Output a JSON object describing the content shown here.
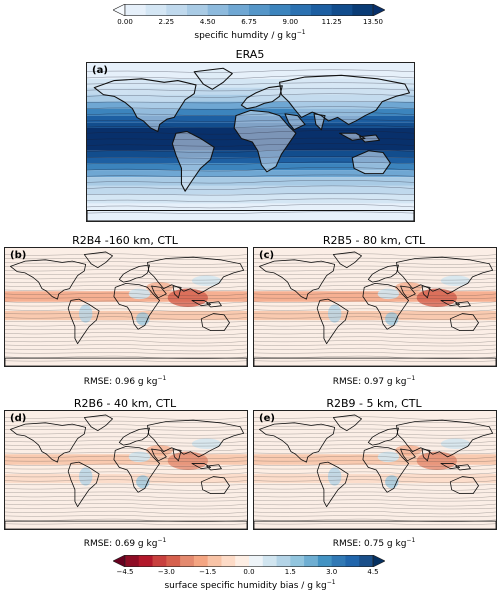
{
  "top_colorbar": {
    "ticks": [
      "0.00",
      "2.25",
      "4.50",
      "6.75",
      "9.00",
      "11.25",
      "13.50"
    ],
    "label_main": "specific humdity / g kg",
    "label_sup": "−1",
    "colors": [
      "#f7fbff",
      "#e6f0fa",
      "#d4e6f4",
      "#c0d9ed",
      "#a9cbe5",
      "#8dbadd",
      "#6fa7d3",
      "#5596c8",
      "#3c84bd",
      "#2b71b1",
      "#1d5fa2",
      "#124d8d",
      "#0a3c76",
      "#08306b"
    ]
  },
  "panels": [
    {
      "id": "a",
      "label": "(a)",
      "title": "ERA5",
      "rmse_value": "",
      "kind": "era5"
    },
    {
      "id": "b",
      "label": "(b)",
      "title": "R2B4 -160 km, CTL",
      "rmse_value": "0.96",
      "kind": "bias"
    },
    {
      "id": "c",
      "label": "(c)",
      "title": "R2B5 - 80 km, CTL",
      "rmse_value": "0.97",
      "kind": "bias"
    },
    {
      "id": "d",
      "label": "(d)",
      "title": "R2B6 - 40 km, CTL",
      "rmse_value": "0.69",
      "kind": "bias"
    },
    {
      "id": "e",
      "label": "(e)",
      "title": "R2B9 - 5 km, CTL",
      "rmse_value": "0.75",
      "kind": "bias"
    }
  ],
  "rmse_text": {
    "prefix": "RMSE: ",
    "unit": " g kg",
    "sup": "−1"
  },
  "bottom_colorbar": {
    "ticks": [
      "−4.5",
      "−3.0",
      "−1.5",
      "0.0",
      "1.5",
      "3.0",
      "4.5"
    ],
    "label": "surface specific humidity bias / g kg",
    "label_sup": "−1",
    "colors": [
      "#67001f",
      "#8e0d25",
      "#b2182b",
      "#c8403e",
      "#d6604d",
      "#e48a6f",
      "#f4a582",
      "#f8c3a6",
      "#fddbc7",
      "#fdeee4",
      "#eef4f8",
      "#d1e5f0",
      "#b4d4e7",
      "#92c5de",
      "#6eaed2",
      "#4393c3",
      "#3179b5",
      "#2166ac",
      "#1a4f8a",
      "#053061"
    ]
  },
  "chart_data": {
    "type": "heatmap",
    "panels": [
      {
        "label": "(a)",
        "title": "ERA5",
        "variable": "specific humidity",
        "units": "g kg-1",
        "colorbar_range": [
          0.0,
          13.5
        ]
      },
      {
        "label": "(b)",
        "title": "R2B4 -160 km, CTL",
        "variable": "surface specific humidity bias",
        "rmse": 0.96,
        "colorbar_range": [
          -4.5,
          4.5
        ]
      },
      {
        "label": "(c)",
        "title": "R2B5 - 80 km, CTL",
        "variable": "surface specific humidity bias",
        "rmse": 0.97,
        "colorbar_range": [
          -4.5,
          4.5
        ]
      },
      {
        "label": "(d)",
        "title": "R2B6 - 40 km, CTL",
        "variable": "surface specific humidity bias",
        "rmse": 0.69,
        "colorbar_range": [
          -4.5,
          4.5
        ]
      },
      {
        "label": "(e)",
        "title": "R2B9 - 5 km, CTL",
        "variable": "surface specific humidity bias",
        "rmse": 0.75,
        "colorbar_range": [
          -4.5,
          4.5
        ]
      }
    ]
  }
}
